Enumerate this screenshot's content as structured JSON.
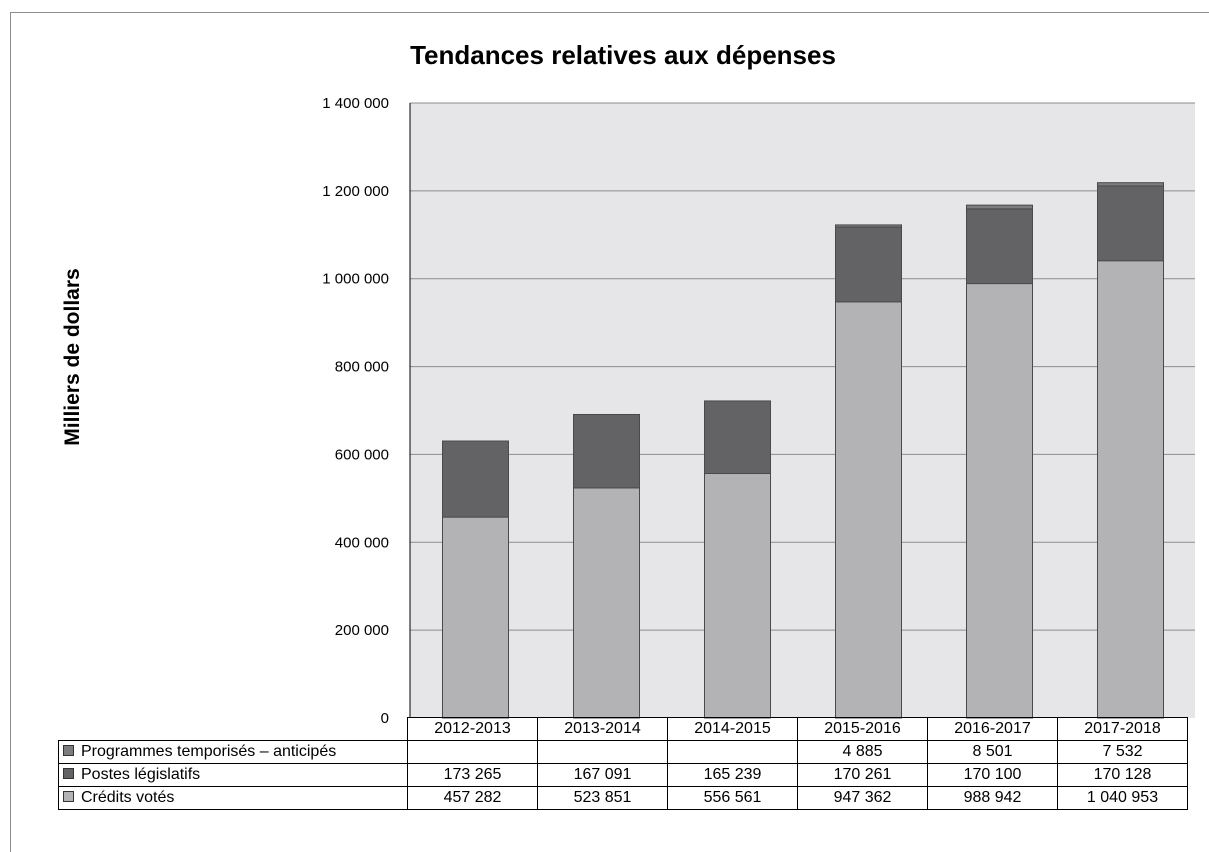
{
  "chart_data": {
    "type": "bar",
    "stacked": true,
    "title": "Tendances relatives aux dépenses",
    "ylabel": "Milliers de dollars",
    "xlabel": "",
    "ylim": [
      0,
      1400000
    ],
    "yticks": [
      0,
      200000,
      400000,
      600000,
      800000,
      1000000,
      1200000,
      1400000
    ],
    "ytick_labels": [
      "0",
      "200 000",
      "400 000",
      "600 000",
      "800 000",
      "1 000 000",
      "1 200 000",
      "1 400 000"
    ],
    "grid": true,
    "legend": "data-table-left",
    "categories": [
      "2012-2013",
      "2013-2014",
      "2014-2015",
      "2015-2016",
      "2016-2017",
      "2017-2018"
    ],
    "series": [
      {
        "name": "Crédits votés",
        "color": "#b3b3b6",
        "values": [
          457282,
          523851,
          556561,
          947362,
          988942,
          1040953
        ],
        "labels": [
          "457 282",
          "523 851",
          "556 561",
          "947 362",
          "988 942",
          "1 040 953"
        ]
      },
      {
        "name": "Postes législatifs",
        "color": "#636365",
        "values": [
          173265,
          167091,
          165239,
          170261,
          170100,
          170128
        ],
        "labels": [
          "173 265",
          "167 091",
          "165 239",
          "170 261",
          "170 100",
          "170 128"
        ]
      },
      {
        "name": "Programmes temporisés – anticipés",
        "color": "#7c7c7e",
        "values": [
          0,
          0,
          0,
          4885,
          8501,
          7532
        ],
        "labels": [
          "",
          "",
          "",
          "4 885",
          "8 501",
          "7 532"
        ]
      }
    ],
    "plot_background": "#e6e6e8",
    "gridline_color": "#8c8c8c"
  }
}
